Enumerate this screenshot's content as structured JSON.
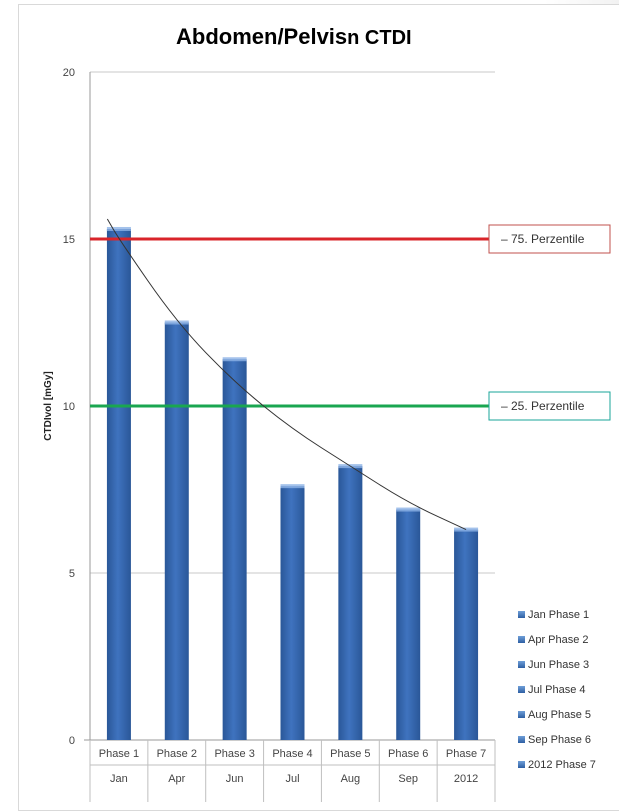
{
  "chart_data": {
    "type": "bar",
    "title": "Abdomen/Pelvis",
    "title_suffix": "n CTDI",
    "ylabel": "CTDIvol [mGy]",
    "ylim": [
      0,
      20
    ],
    "yticks": [
      0,
      5,
      10,
      15,
      20
    ],
    "grid": true,
    "categories": [
      "Phase 1",
      "Phase 2",
      "Phase 3",
      "Phase 4",
      "Phase 5",
      "Phase 6",
      "Phase 7"
    ],
    "subcategories": [
      "Jan",
      "Apr",
      "Jun",
      "Jul",
      "Aug",
      "Sep",
      "2012"
    ],
    "values": [
      15.3,
      12.5,
      11.4,
      7.6,
      8.2,
      6.9,
      6.3
    ],
    "bar_color": "#3f73bf",
    "trendline": {
      "type": "power",
      "color": "#333333",
      "points": [
        [
          0.8,
          15.6
        ],
        [
          1,
          15.0
        ],
        [
          2,
          12.5
        ],
        [
          3,
          10.7
        ],
        [
          4,
          9.3
        ],
        [
          5,
          8.2
        ],
        [
          6,
          7.1
        ],
        [
          7,
          6.3
        ]
      ]
    },
    "reference_lines": [
      {
        "label": "75. Perzentile",
        "value": 15,
        "color": "#d9242a",
        "border": "#c0504d"
      },
      {
        "label": "25. Perzentile",
        "value": 10,
        "color": "#1aa650",
        "border": "#1aa69a"
      }
    ],
    "legend": {
      "position": "bottom-right",
      "entries": [
        "Jan Phase 1",
        "Apr Phase 2",
        "Jun Phase 3",
        "Jul Phase 4",
        "Aug Phase 5",
        "Sep Phase 6",
        "2012 Phase 7"
      ]
    }
  }
}
